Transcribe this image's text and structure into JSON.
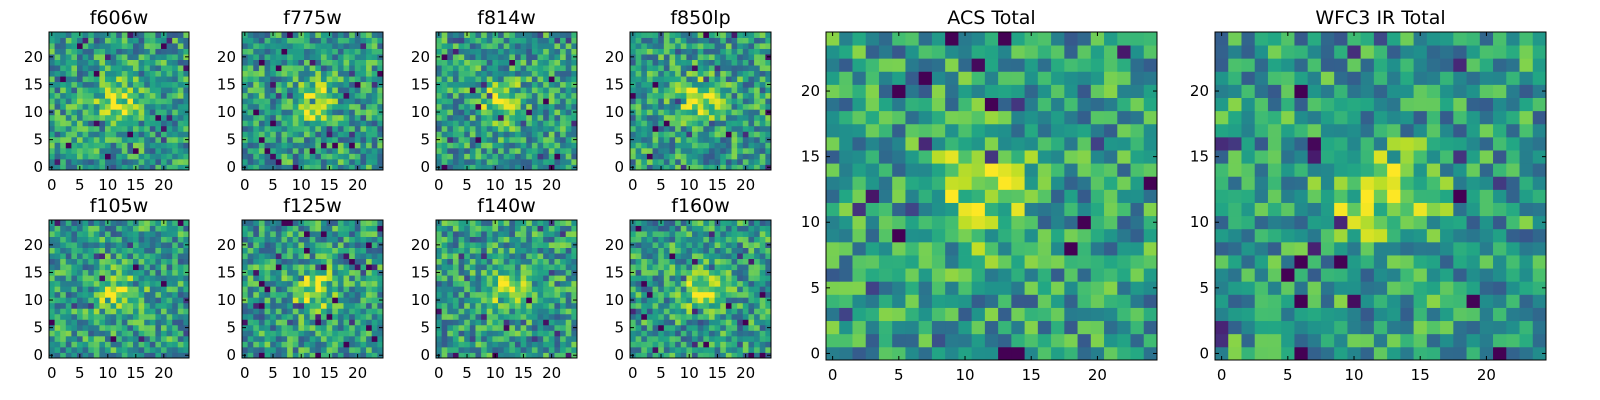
{
  "chart_data": [
    {
      "type": "heatmap",
      "title": "f606w",
      "seed": 11,
      "xticks": [
        0,
        5,
        10,
        15,
        20
      ],
      "yticks": [
        0,
        5,
        10,
        15,
        20
      ],
      "grid_size": 25,
      "xlim": [
        -0.5,
        24.5
      ],
      "ylim": [
        -0.5,
        24.5
      ],
      "colormap": "viridis",
      "peak": [
        12,
        12
      ]
    },
    {
      "type": "heatmap",
      "title": "f775w",
      "seed": 23,
      "xticks": [
        0,
        5,
        10,
        15,
        20
      ],
      "yticks": [
        0,
        5,
        10,
        15,
        20
      ],
      "grid_size": 25,
      "xlim": [
        -0.5,
        24.5
      ],
      "ylim": [
        -0.5,
        24.5
      ],
      "colormap": "viridis",
      "peak": [
        12,
        12
      ]
    },
    {
      "type": "heatmap",
      "title": "f814w",
      "seed": 37,
      "xticks": [
        0,
        5,
        10,
        15,
        20
      ],
      "yticks": [
        0,
        5,
        10,
        15,
        20
      ],
      "grid_size": 25,
      "xlim": [
        -0.5,
        24.5
      ],
      "ylim": [
        -0.5,
        24.5
      ],
      "colormap": "viridis",
      "peak": [
        11,
        12
      ]
    },
    {
      "type": "heatmap",
      "title": "f850lp",
      "seed": 41,
      "xticks": [
        0,
        5,
        10,
        15,
        20
      ],
      "yticks": [
        0,
        5,
        10,
        15,
        20
      ],
      "grid_size": 25,
      "xlim": [
        -0.5,
        24.5
      ],
      "ylim": [
        -0.5,
        24.5
      ],
      "colormap": "viridis",
      "peak": [
        12,
        12
      ]
    },
    {
      "type": "heatmap",
      "title": "f105w",
      "seed": 53,
      "xticks": [
        0,
        5,
        10,
        15,
        20
      ],
      "yticks": [
        0,
        5,
        10,
        15,
        20
      ],
      "grid_size": 25,
      "xlim": [
        -0.5,
        24.5
      ],
      "ylim": [
        -0.5,
        24.5
      ],
      "colormap": "viridis",
      "peak": [
        12,
        11
      ]
    },
    {
      "type": "heatmap",
      "title": "f125w",
      "seed": 67,
      "xticks": [
        0,
        5,
        10,
        15,
        20
      ],
      "yticks": [
        0,
        5,
        10,
        15,
        20
      ],
      "grid_size": 25,
      "xlim": [
        -0.5,
        24.5
      ],
      "ylim": [
        -0.5,
        24.5
      ],
      "colormap": "viridis",
      "peak": [
        12,
        12
      ]
    },
    {
      "type": "heatmap",
      "title": "f140w",
      "seed": 79,
      "xticks": [
        0,
        5,
        10,
        15,
        20
      ],
      "yticks": [
        0,
        5,
        10,
        15,
        20
      ],
      "grid_size": 25,
      "xlim": [
        -0.5,
        24.5
      ],
      "ylim": [
        -0.5,
        24.5
      ],
      "colormap": "viridis",
      "peak": [
        12,
        12
      ]
    },
    {
      "type": "heatmap",
      "title": "f160w",
      "seed": 83,
      "xticks": [
        0,
        5,
        10,
        15,
        20
      ],
      "yticks": [
        0,
        5,
        10,
        15,
        20
      ],
      "grid_size": 25,
      "xlim": [
        -0.5,
        24.5
      ],
      "ylim": [
        -0.5,
        24.5
      ],
      "colormap": "viridis",
      "peak": [
        12,
        12
      ]
    },
    {
      "type": "heatmap",
      "title": "ACS Total",
      "seed": 97,
      "xticks": [
        0,
        5,
        10,
        15,
        20
      ],
      "yticks": [
        0,
        5,
        10,
        15,
        20
      ],
      "grid_size": 25,
      "xlim": [
        -0.5,
        24.5
      ],
      "ylim": [
        -0.5,
        24.5
      ],
      "colormap": "viridis",
      "peak": [
        11,
        12
      ]
    },
    {
      "type": "heatmap",
      "title": "WFC3 IR Total",
      "seed": 101,
      "xticks": [
        0,
        5,
        10,
        15,
        20
      ],
      "yticks": [
        0,
        5,
        10,
        15,
        20
      ],
      "grid_size": 25,
      "xlim": [
        -0.5,
        24.5
      ],
      "ylim": [
        -0.5,
        24.5
      ],
      "colormap": "viridis",
      "peak": [
        12,
        12
      ]
    }
  ]
}
